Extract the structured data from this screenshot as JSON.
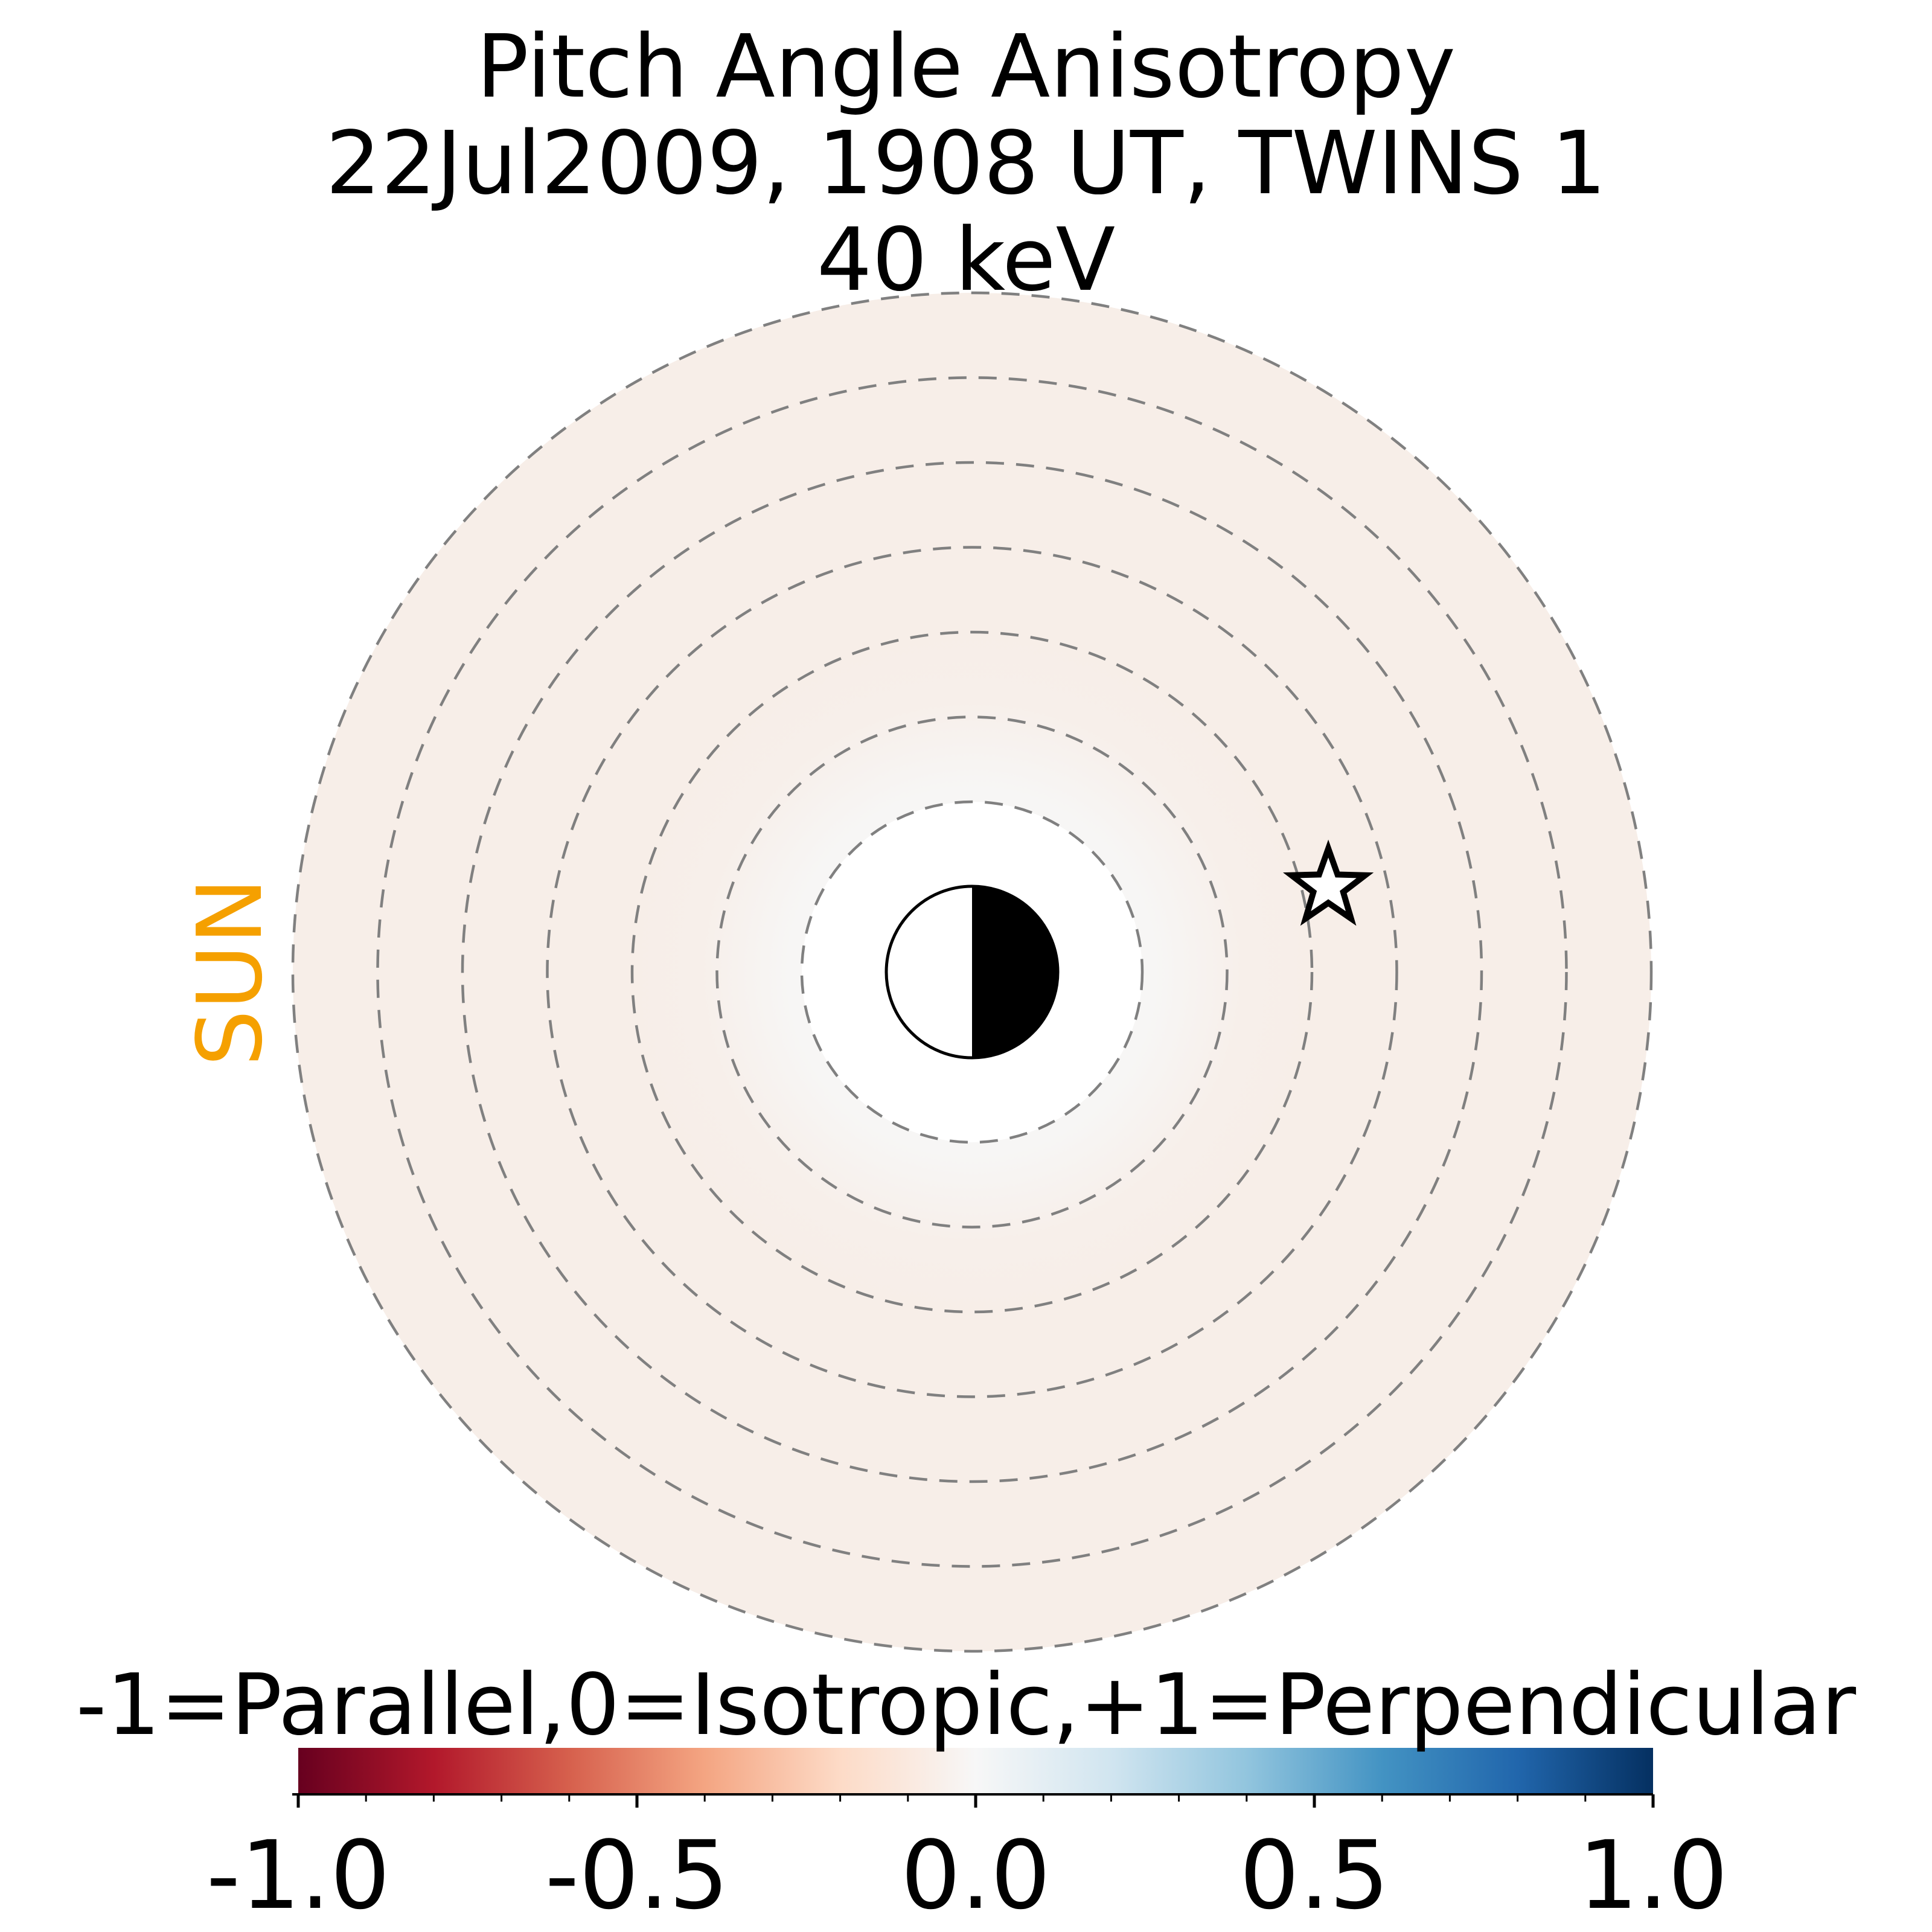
{
  "chart_data": {
    "type": "polar-heatmap",
    "title_lines": [
      "Pitch Angle Anisotropy",
      "22Jul2009, 1908 UT,  TWINS 1",
      "40 keV"
    ],
    "sun_label": "SUN",
    "colorbar": {
      "label": "-1=Parallel,0=Isotropic,+1=Perpendicular",
      "range": [
        -1.0,
        1.0
      ],
      "ticks": [
        -1.0,
        -0.5,
        0.0,
        0.5,
        1.0
      ],
      "tick_labels": [
        "-1.0",
        "-0.5",
        "0.0",
        "0.5",
        "1.0"
      ],
      "colormap": "RdBu"
    },
    "rings": [
      2,
      3,
      4,
      5,
      6,
      7,
      8
    ],
    "r_range": [
      2,
      8
    ],
    "field_value_outer": -0.06,
    "field_value_inner": 0.0,
    "spacecraft_marker": {
      "symbol": "star",
      "x": -4.2,
      "y": 1.0
    },
    "earth": {
      "day_side": "left",
      "night_side": "right"
    },
    "colors": {
      "sun_label": "#f5a000",
      "ring_dash": "#808080"
    }
  }
}
